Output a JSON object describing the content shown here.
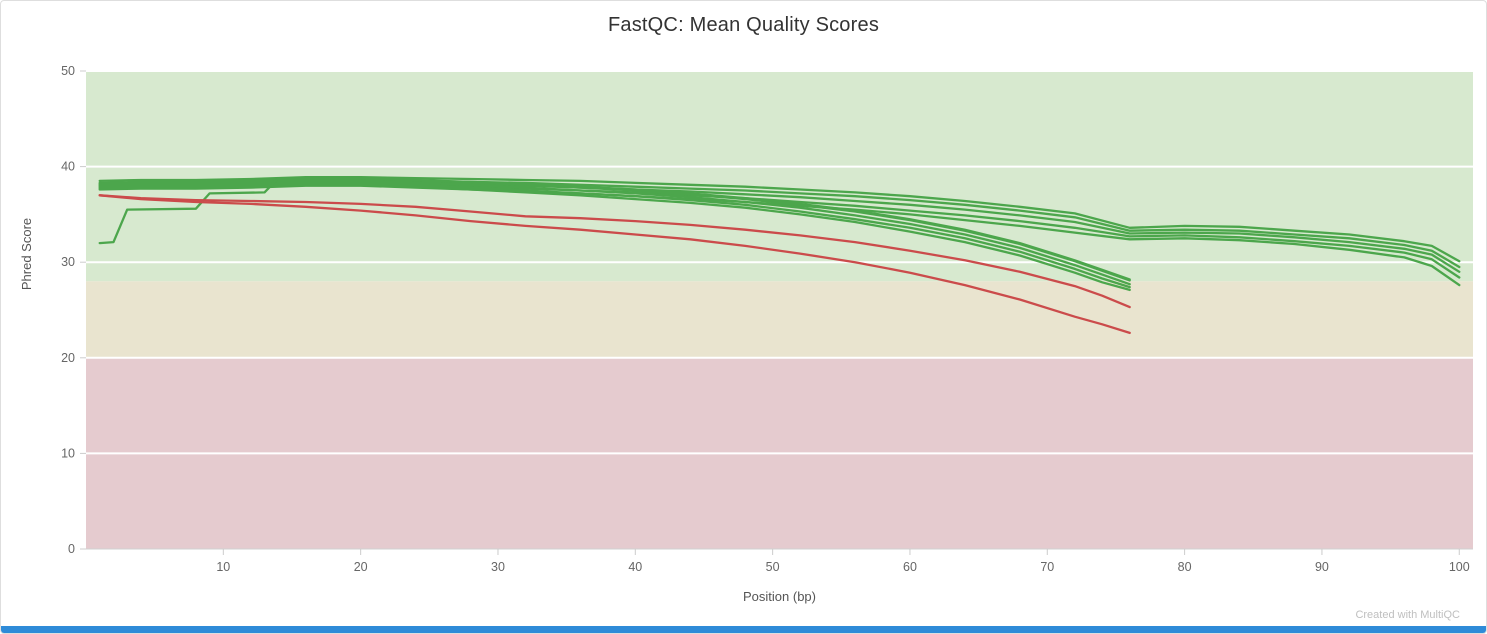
{
  "footer": {
    "credit": "Created with MultiQC"
  },
  "colors": {
    "title_text": "#333333",
    "axis_text": "#666666",
    "axis_title_text": "#555555",
    "grid": "#ffffff",
    "tick": "#cccccc",
    "baseline": "#d0d0d0",
    "accent_bar": "#2e8bd8",
    "pass_band": "#d7e9cf",
    "warn_band": "#e9e4cf",
    "fail_band": "#e5cbcf",
    "green_line": "#4ca64c",
    "red_line": "#cb4b4b"
  },
  "chart_data": {
    "type": "line",
    "title": "FastQC: Mean Quality Scores",
    "xlabel": "Position (bp)",
    "ylabel": "Phred Score",
    "xlim": [
      0,
      101
    ],
    "ylim": [
      0,
      50
    ],
    "x_ticks": [
      10,
      20,
      30,
      40,
      50,
      60,
      70,
      80,
      90,
      100
    ],
    "y_ticks": [
      0,
      10,
      20,
      30,
      40,
      50
    ],
    "legend": "none",
    "grid": "horizontal-white",
    "bands": [
      {
        "name": "pass",
        "from": 28,
        "to": 50,
        "color": "#d7e9cf"
      },
      {
        "name": "warn",
        "from": 20,
        "to": 28,
        "color": "#e9e4cf"
      },
      {
        "name": "fail",
        "from": 0,
        "to": 20,
        "color": "#e5cbcf"
      }
    ],
    "series": [
      {
        "name": "green-long-1",
        "color": "#4ca64c",
        "x": [
          1,
          4,
          8,
          12,
          16,
          20,
          24,
          28,
          32,
          36,
          40,
          44,
          48,
          52,
          56,
          60,
          64,
          68,
          72,
          76,
          80,
          84,
          88,
          92,
          96,
          98,
          100
        ],
        "y": [
          38.5,
          38.6,
          38.6,
          38.7,
          38.9,
          38.9,
          38.8,
          38.7,
          38.6,
          38.5,
          38.3,
          38.1,
          37.9,
          37.6,
          37.3,
          36.9,
          36.4,
          35.8,
          35.1,
          33.6,
          33.8,
          33.7,
          33.3,
          32.9,
          32.2,
          31.7,
          30.1
        ]
      },
      {
        "name": "green-long-2",
        "color": "#4ca64c",
        "x": [
          1,
          4,
          8,
          12,
          16,
          20,
          24,
          28,
          32,
          36,
          40,
          44,
          48,
          52,
          56,
          60,
          64,
          68,
          72,
          76,
          80,
          84,
          88,
          92,
          96,
          98,
          100
        ],
        "y": [
          38.2,
          38.3,
          38.3,
          38.4,
          38.6,
          38.6,
          38.5,
          38.4,
          38.3,
          38.1,
          37.9,
          37.7,
          37.5,
          37.2,
          36.9,
          36.5,
          36.0,
          35.4,
          34.7,
          33.3,
          33.4,
          33.3,
          32.9,
          32.5,
          31.8,
          31.2,
          29.5
        ]
      },
      {
        "name": "green-long-3",
        "color": "#4ca64c",
        "x": [
          1,
          4,
          8,
          12,
          16,
          20,
          24,
          28,
          32,
          36,
          40,
          44,
          48,
          52,
          56,
          60,
          64,
          68,
          72,
          76,
          80,
          84,
          88,
          92,
          96,
          98,
          100
        ],
        "y": [
          38.0,
          38.1,
          38.1,
          38.2,
          38.4,
          38.4,
          38.3,
          38.2,
          38.0,
          37.8,
          37.6,
          37.4,
          37.1,
          36.8,
          36.4,
          36.0,
          35.5,
          34.9,
          34.2,
          33.0,
          33.1,
          33.0,
          32.6,
          32.1,
          31.4,
          30.8,
          29.0
        ]
      },
      {
        "name": "green-long-4",
        "color": "#4ca64c",
        "x": [
          1,
          4,
          8,
          12,
          16,
          20,
          24,
          28,
          32,
          36,
          40,
          44,
          48,
          52,
          56,
          60,
          64,
          68,
          72,
          76,
          80,
          84,
          88,
          92,
          96,
          98,
          100
        ],
        "y": [
          37.8,
          37.9,
          37.9,
          38.0,
          38.2,
          38.2,
          38.1,
          37.9,
          37.7,
          37.5,
          37.3,
          37.0,
          36.7,
          36.3,
          35.9,
          35.4,
          34.9,
          34.3,
          33.6,
          32.7,
          32.8,
          32.6,
          32.2,
          31.7,
          31.0,
          30.3,
          28.4
        ]
      },
      {
        "name": "green-long-5",
        "color": "#4ca64c",
        "x": [
          1,
          4,
          8,
          12,
          16,
          20,
          24,
          28,
          32,
          36,
          40,
          44,
          48,
          52,
          56,
          60,
          64,
          68,
          72,
          76,
          80,
          84,
          88,
          92,
          96,
          98,
          100
        ],
        "y": [
          37.6,
          37.7,
          37.7,
          37.8,
          38.0,
          38.0,
          37.8,
          37.6,
          37.4,
          37.2,
          36.9,
          36.6,
          36.3,
          35.9,
          35.5,
          35.0,
          34.4,
          33.8,
          33.1,
          32.4,
          32.5,
          32.3,
          31.9,
          31.3,
          30.5,
          29.6,
          27.6
        ]
      },
      {
        "name": "green-short-1",
        "color": "#4ca64c",
        "x": [
          1,
          4,
          8,
          12,
          16,
          20,
          24,
          28,
          32,
          36,
          40,
          44,
          48,
          52,
          56,
          60,
          64,
          68,
          72,
          74,
          76
        ],
        "y": [
          38.3,
          38.4,
          38.4,
          38.5,
          38.7,
          38.7,
          38.5,
          38.3,
          38.1,
          37.8,
          37.5,
          37.1,
          36.6,
          36.0,
          35.3,
          34.4,
          33.3,
          31.9,
          30.1,
          29.1,
          28.1
        ]
      },
      {
        "name": "green-short-2",
        "color": "#4ca64c",
        "x": [
          1,
          4,
          8,
          12,
          16,
          20,
          24,
          28,
          32,
          36,
          40,
          44,
          48,
          52,
          56,
          60,
          64,
          68,
          72,
          74,
          76
        ],
        "y": [
          38.1,
          38.2,
          38.2,
          38.3,
          38.5,
          38.5,
          38.3,
          38.1,
          37.8,
          37.5,
          37.2,
          36.8,
          36.3,
          35.7,
          34.9,
          34.0,
          32.9,
          31.5,
          29.7,
          28.7,
          27.7
        ]
      },
      {
        "name": "green-short-3",
        "color": "#4ca64c",
        "x": [
          1,
          4,
          8,
          12,
          16,
          20,
          24,
          28,
          32,
          36,
          40,
          44,
          48,
          52,
          56,
          60,
          64,
          68,
          72,
          74,
          76
        ],
        "y": [
          37.9,
          38.0,
          38.0,
          38.1,
          38.3,
          38.3,
          38.1,
          37.8,
          37.5,
          37.2,
          36.9,
          36.5,
          36.0,
          35.3,
          34.5,
          33.6,
          32.5,
          31.1,
          29.3,
          28.3,
          27.4
        ]
      },
      {
        "name": "green-short-4",
        "color": "#4ca64c",
        "x": [
          1,
          4,
          8,
          12,
          16,
          20,
          24,
          28,
          32,
          36,
          40,
          44,
          48,
          52,
          56,
          60,
          64,
          68,
          72,
          74,
          76
        ],
        "y": [
          37.7,
          37.8,
          37.8,
          37.9,
          38.1,
          38.1,
          37.9,
          37.6,
          37.3,
          37.0,
          36.6,
          36.2,
          35.7,
          35.0,
          34.2,
          33.2,
          32.1,
          30.7,
          28.9,
          27.9,
          27.1
        ]
      },
      {
        "name": "green-stepped",
        "color": "#4ca64c",
        "x": [
          1,
          2,
          3,
          8,
          9,
          13,
          14,
          16,
          20,
          24,
          28,
          32,
          36,
          40,
          44,
          48,
          52,
          56,
          60,
          64,
          68,
          72,
          74,
          76
        ],
        "y": [
          32.0,
          32.1,
          35.5,
          35.6,
          37.2,
          37.3,
          38.8,
          38.8,
          38.8,
          38.6,
          38.4,
          38.2,
          37.9,
          37.6,
          37.2,
          36.7,
          36.1,
          35.4,
          34.5,
          33.4,
          32.0,
          30.2,
          29.2,
          28.2
        ]
      },
      {
        "name": "red-upper",
        "color": "#cb4b4b",
        "x": [
          1,
          4,
          8,
          12,
          16,
          20,
          24,
          28,
          32,
          36,
          40,
          44,
          48,
          52,
          56,
          60,
          64,
          68,
          72,
          74,
          76
        ],
        "y": [
          37.0,
          36.7,
          36.5,
          36.4,
          36.3,
          36.1,
          35.8,
          35.3,
          34.8,
          34.6,
          34.3,
          33.9,
          33.4,
          32.8,
          32.1,
          31.2,
          30.2,
          29.0,
          27.5,
          26.5,
          25.3
        ]
      },
      {
        "name": "red-lower",
        "color": "#cb4b4b",
        "x": [
          1,
          4,
          8,
          12,
          16,
          20,
          24,
          28,
          32,
          36,
          40,
          44,
          48,
          52,
          56,
          60,
          64,
          68,
          72,
          74,
          76
        ],
        "y": [
          37.0,
          36.6,
          36.3,
          36.1,
          35.8,
          35.4,
          34.9,
          34.3,
          33.8,
          33.4,
          32.9,
          32.4,
          31.7,
          30.9,
          30.0,
          28.9,
          27.6,
          26.1,
          24.3,
          23.5,
          22.6
        ]
      }
    ]
  }
}
